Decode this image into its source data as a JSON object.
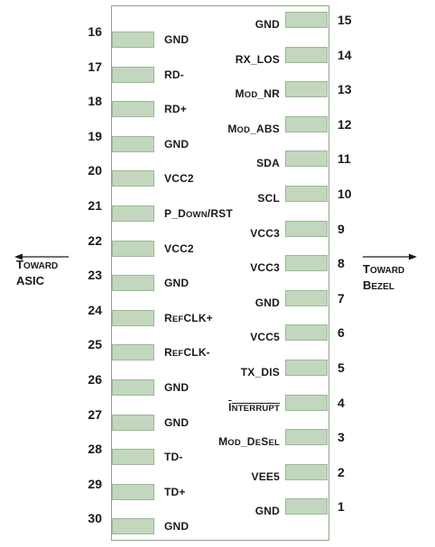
{
  "direction_left": {
    "line1_initial": "T",
    "line1_rest": "OWARD",
    "line2": "ASIC"
  },
  "direction_right": {
    "line1_initial": "T",
    "line1_rest": "OWARD",
    "line2_initial": "B",
    "line2_rest": "EZEL"
  },
  "left_pins": [
    {
      "number": "16",
      "label": "GND"
    },
    {
      "number": "17",
      "label": "RD-"
    },
    {
      "number": "18",
      "label": "RD+"
    },
    {
      "number": "19",
      "label": "GND"
    },
    {
      "number": "20",
      "label": "VCC2"
    },
    {
      "number": "21",
      "parts": [
        [
          "P_",
          ""
        ],
        [
          "D",
          ""
        ],
        [
          "OWN",
          "sc"
        ],
        [
          "/RST",
          ""
        ]
      ]
    },
    {
      "number": "22",
      "label": "VCC2"
    },
    {
      "number": "23",
      "label": "GND"
    },
    {
      "number": "24",
      "parts": [
        [
          "R",
          ""
        ],
        [
          "EF",
          "sc"
        ],
        [
          "CLK+",
          ""
        ]
      ]
    },
    {
      "number": "25",
      "parts": [
        [
          "R",
          ""
        ],
        [
          "EF",
          "sc"
        ],
        [
          "CLK-",
          ""
        ]
      ]
    },
    {
      "number": "26",
      "label": "GND"
    },
    {
      "number": "27",
      "label": "GND"
    },
    {
      "number": "28",
      "label": "TD-"
    },
    {
      "number": "29",
      "label": "TD+"
    },
    {
      "number": "30",
      "label": "GND"
    }
  ],
  "right_pins": [
    {
      "number": "15",
      "label": "GND"
    },
    {
      "number": "14",
      "label": "RX_LOS"
    },
    {
      "number": "13",
      "parts": [
        [
          "M",
          ""
        ],
        [
          "OD",
          "sc"
        ],
        [
          "_NR",
          ""
        ]
      ]
    },
    {
      "number": "12",
      "parts": [
        [
          "M",
          ""
        ],
        [
          "OD",
          "sc"
        ],
        [
          "_ABS",
          ""
        ]
      ]
    },
    {
      "number": "11",
      "label": "SDA"
    },
    {
      "number": "10",
      "label": "SCL"
    },
    {
      "number": "9",
      "label": "VCC3"
    },
    {
      "number": "8",
      "label": "VCC3"
    },
    {
      "number": "7",
      "label": "GND"
    },
    {
      "number": "6",
      "label": "VCC5"
    },
    {
      "number": "5",
      "label": "TX_DIS"
    },
    {
      "number": "4",
      "parts": [
        [
          "I",
          "ovl"
        ],
        [
          "NTERRUPT",
          "sc ovl"
        ]
      ]
    },
    {
      "number": "3",
      "parts": [
        [
          "M",
          ""
        ],
        [
          "OD",
          "sc"
        ],
        [
          "_D",
          ""
        ],
        [
          "E",
          "sc"
        ],
        [
          "S",
          ""
        ],
        [
          "EL",
          "sc"
        ]
      ]
    },
    {
      "number": "2",
      "label": "VEE5"
    },
    {
      "number": "1",
      "label": "GND"
    }
  ]
}
